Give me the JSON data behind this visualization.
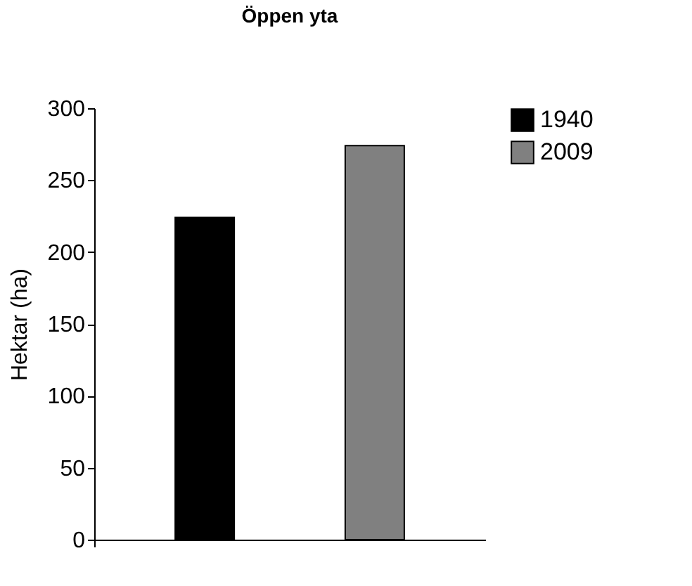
{
  "chart_data": {
    "type": "bar",
    "title": "Öppen yta",
    "ylabel": "Hektar (ha)",
    "categories": [
      null
    ],
    "series": [
      {
        "name": "1940",
        "color": "#000000",
        "values": [
          224
        ]
      },
      {
        "name": "2009",
        "color": "#808080",
        "values": [
          274
        ]
      }
    ],
    "ylim": [
      0,
      300
    ],
    "yticks": [
      0,
      50,
      100,
      150,
      200,
      250,
      300
    ],
    "grid": false,
    "legend": "right"
  }
}
